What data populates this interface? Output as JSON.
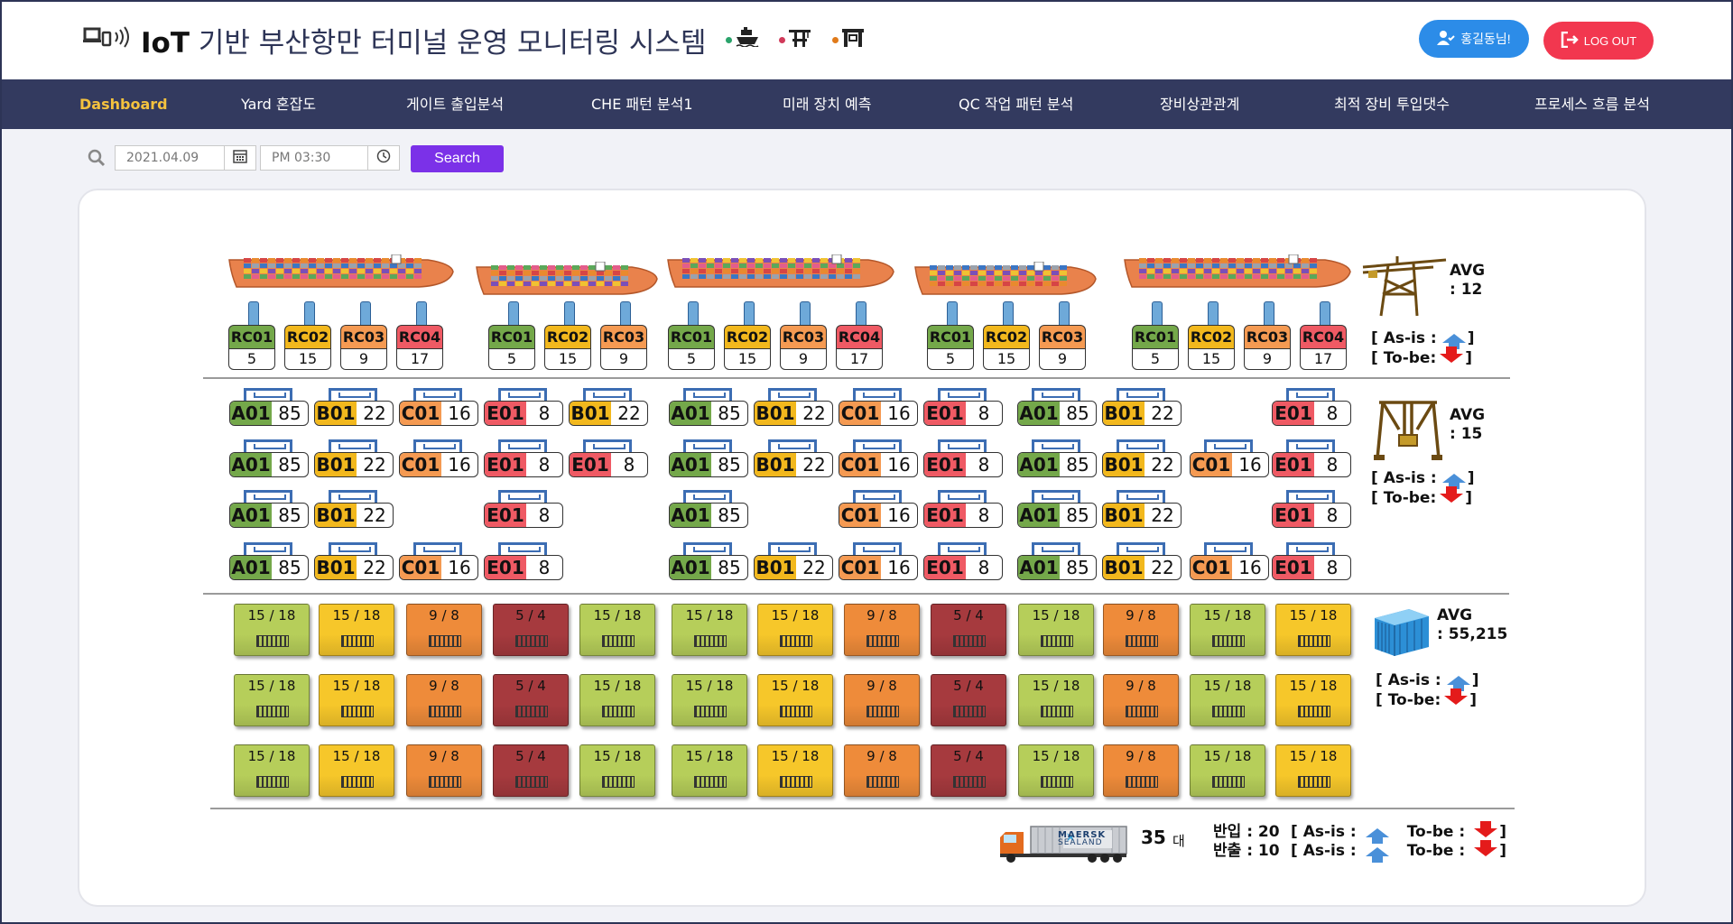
{
  "header": {
    "title_bold": "IoT",
    "title_rest": "기반 부산항만 터미널 운영 모니터링 시스템",
    "legend": [
      {
        "icon": "ship-icon",
        "color": "#2aa36b",
        "glyph": "⛴"
      },
      {
        "icon": "crane-icon",
        "color": "#d13a5a",
        "glyph": "🏗"
      },
      {
        "icon": "gantry-icon",
        "color": "#e07a1a",
        "glyph": "⛩"
      }
    ],
    "user_label": "홍길동님!",
    "logout_label": "LOG OUT"
  },
  "nav": {
    "items": [
      {
        "label": "Dashboard",
        "active": true
      },
      {
        "label": "Yard  혼잡도"
      },
      {
        "label": "게이트 출입분석"
      },
      {
        "label": "CHE 패턴 분석1"
      },
      {
        "label": "미래 장치 예측"
      },
      {
        "label": "QC 작업 패턴 분석"
      },
      {
        "label": "장비상관관계"
      },
      {
        "label": "최적 장비 투입댓수"
      },
      {
        "label": "프로세스 흐름 분석"
      }
    ]
  },
  "search": {
    "date_value": "2021.04.09",
    "time_value": "PM 03:30",
    "button_label": "Search"
  },
  "colors": {
    "green": "#74a84a",
    "yellow": "#f2b81d",
    "orange": "#f59a52",
    "red": "#ef5a64",
    "ct_green": "#b6ce5a",
    "ct_yellow": "#f6c72a",
    "ct_orange": "#ee8b3a",
    "ct_red": "#a63a3e"
  },
  "berths": [
    {
      "cranes": [
        {
          "code": "RC01",
          "value": "5",
          "color": "green"
        },
        {
          "code": "RC02",
          "value": "15",
          "color": "yellow"
        },
        {
          "code": "RC03",
          "value": "9",
          "color": "orange"
        },
        {
          "code": "RC04",
          "value": "17",
          "color": "red"
        }
      ]
    },
    {
      "cranes": [
        {
          "code": "RC01",
          "value": "5",
          "color": "green"
        },
        {
          "code": "RC02",
          "value": "15",
          "color": "yellow"
        },
        {
          "code": "RC03",
          "value": "9",
          "color": "orange"
        }
      ]
    },
    {
      "cranes": [
        {
          "code": "RC01",
          "value": "5",
          "color": "green"
        },
        {
          "code": "RC02",
          "value": "15",
          "color": "yellow"
        },
        {
          "code": "RC03",
          "value": "9",
          "color": "orange"
        },
        {
          "code": "RC04",
          "value": "17",
          "color": "red"
        }
      ]
    },
    {
      "cranes": [
        {
          "code": "RC01",
          "value": "5",
          "color": "green"
        },
        {
          "code": "RC02",
          "value": "15",
          "color": "yellow"
        },
        {
          "code": "RC03",
          "value": "9",
          "color": "orange"
        }
      ]
    },
    {
      "cranes": [
        {
          "code": "RC01",
          "value": "5",
          "color": "green"
        },
        {
          "code": "RC02",
          "value": "15",
          "color": "yellow"
        },
        {
          "code": "RC03",
          "value": "9",
          "color": "orange"
        },
        {
          "code": "RC04",
          "value": "17",
          "color": "red"
        }
      ]
    }
  ],
  "crane_stats": {
    "avg": "AVG\n: 12",
    "asis": "[ As-is :",
    "tobe": "[ To-be:",
    "close": "]"
  },
  "yard_rows": [
    [
      {
        "code": "A01",
        "value": "85",
        "color": "green"
      },
      {
        "code": "B01",
        "value": "22",
        "color": "yellow"
      },
      {
        "code": "C01",
        "value": "16",
        "color": "orange"
      },
      {
        "code": "E01",
        "value": "8",
        "color": "red"
      },
      {
        "code": "B01",
        "value": "22",
        "color": "yellow"
      },
      {
        "code": "A01",
        "value": "85",
        "color": "green"
      },
      {
        "code": "B01",
        "value": "22",
        "color": "yellow"
      },
      {
        "code": "C01",
        "value": "16",
        "color": "orange"
      },
      {
        "code": "E01",
        "value": "8",
        "color": "red"
      },
      {
        "code": "A01",
        "value": "85",
        "color": "green"
      },
      {
        "code": "B01",
        "value": "22",
        "color": "yellow"
      },
      null,
      {
        "code": "E01",
        "value": "8",
        "color": "red"
      }
    ],
    [
      {
        "code": "A01",
        "value": "85",
        "color": "green"
      },
      {
        "code": "B01",
        "value": "22",
        "color": "yellow"
      },
      {
        "code": "C01",
        "value": "16",
        "color": "orange"
      },
      {
        "code": "E01",
        "value": "8",
        "color": "red"
      },
      {
        "code": "E01",
        "value": "8",
        "color": "red"
      },
      {
        "code": "A01",
        "value": "85",
        "color": "green"
      },
      {
        "code": "B01",
        "value": "22",
        "color": "yellow"
      },
      {
        "code": "C01",
        "value": "16",
        "color": "orange"
      },
      {
        "code": "E01",
        "value": "8",
        "color": "red"
      },
      {
        "code": "A01",
        "value": "85",
        "color": "green"
      },
      {
        "code": "B01",
        "value": "22",
        "color": "yellow"
      },
      {
        "code": "C01",
        "value": "16",
        "color": "orange"
      },
      {
        "code": "E01",
        "value": "8",
        "color": "red"
      }
    ],
    [
      {
        "code": "A01",
        "value": "85",
        "color": "green"
      },
      {
        "code": "B01",
        "value": "22",
        "color": "yellow"
      },
      null,
      {
        "code": "E01",
        "value": "8",
        "color": "red"
      },
      null,
      {
        "code": "A01",
        "value": "85",
        "color": "green"
      },
      null,
      {
        "code": "C01",
        "value": "16",
        "color": "orange"
      },
      {
        "code": "E01",
        "value": "8",
        "color": "red"
      },
      {
        "code": "A01",
        "value": "85",
        "color": "green"
      },
      {
        "code": "B01",
        "value": "22",
        "color": "yellow"
      },
      null,
      {
        "code": "E01",
        "value": "8",
        "color": "red"
      }
    ],
    [
      {
        "code": "A01",
        "value": "85",
        "color": "green"
      },
      {
        "code": "B01",
        "value": "22",
        "color": "yellow"
      },
      {
        "code": "C01",
        "value": "16",
        "color": "orange"
      },
      {
        "code": "E01",
        "value": "8",
        "color": "red"
      },
      null,
      {
        "code": "A01",
        "value": "85",
        "color": "green"
      },
      {
        "code": "B01",
        "value": "22",
        "color": "yellow"
      },
      {
        "code": "C01",
        "value": "16",
        "color": "orange"
      },
      {
        "code": "E01",
        "value": "8",
        "color": "red"
      },
      {
        "code": "A01",
        "value": "85",
        "color": "green"
      },
      {
        "code": "B01",
        "value": "22",
        "color": "yellow"
      },
      {
        "code": "C01",
        "value": "16",
        "color": "orange"
      },
      {
        "code": "E01",
        "value": "8",
        "color": "red"
      }
    ]
  ],
  "yard_stats": {
    "avg": "AVG\n: 15",
    "asis": "[ As-is :",
    "tobe": "[ To-be:",
    "close": "]"
  },
  "container_row": [
    {
      "value": "15 / 18",
      "color": "ct_green"
    },
    {
      "value": "15 / 18",
      "color": "ct_yellow"
    },
    {
      "value": "9 / 8",
      "color": "ct_orange"
    },
    {
      "value": "5 / 4",
      "color": "ct_red"
    },
    {
      "value": "15 / 18",
      "color": "ct_green"
    },
    {
      "value": "15 / 18",
      "color": "ct_green"
    },
    {
      "value": "15 / 18",
      "color": "ct_yellow"
    },
    {
      "value": "9 / 8",
      "color": "ct_orange"
    },
    {
      "value": "5 / 4",
      "color": "ct_red"
    },
    {
      "value": "15 / 18",
      "color": "ct_green"
    },
    {
      "value": "9 / 8",
      "color": "ct_orange"
    },
    {
      "value": "15 / 18",
      "color": "ct_green"
    },
    {
      "value": "15 / 18",
      "color": "ct_yellow"
    }
  ],
  "container_stats": {
    "avg": "AVG\n: 55,215",
    "asis": "[ As-is :",
    "tobe": "[ To-be:",
    "close": "]"
  },
  "truck": {
    "brand_line1": "MAERSK",
    "brand_line2": "SEALAND",
    "count": "35",
    "unit": "대",
    "in_label": "반입 : 20",
    "out_label": "반출 : 10",
    "asis": "[ As-is :",
    "tobe": "To-be :",
    "close": "]"
  }
}
